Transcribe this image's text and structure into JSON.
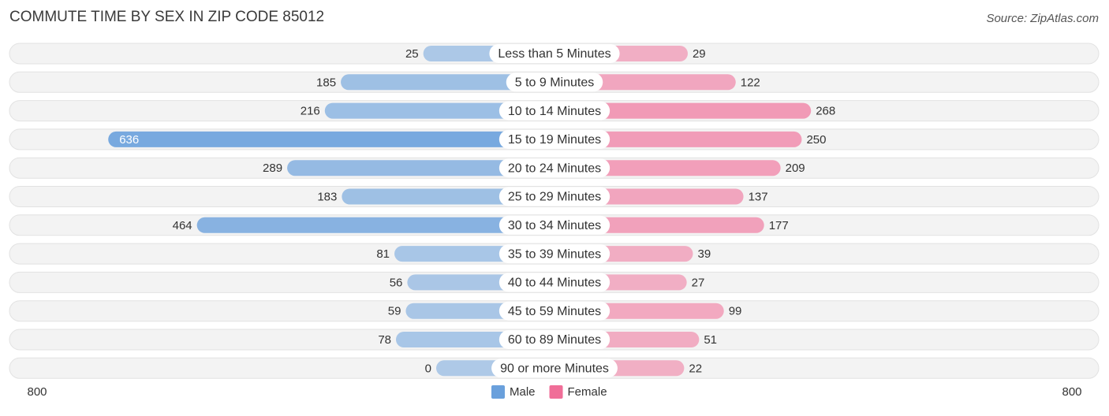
{
  "chart_data": {
    "type": "diverging_bar",
    "title": "COMMUTE TIME BY SEX IN ZIP CODE 85012",
    "source": "Source: ZipAtlas.com",
    "categories": [
      "Less than 5 Minutes",
      "5 to 9 Minutes",
      "10 to 14 Minutes",
      "15 to 19 Minutes",
      "20 to 24 Minutes",
      "25 to 29 Minutes",
      "30 to 34 Minutes",
      "35 to 39 Minutes",
      "40 to 44 Minutes",
      "45 to 59 Minutes",
      "60 to 89 Minutes",
      "90 or more Minutes"
    ],
    "series": [
      {
        "name": "Male",
        "color": "#6aa0dc",
        "values": [
          25,
          185,
          216,
          636,
          289,
          183,
          464,
          81,
          56,
          59,
          78,
          0
        ]
      },
      {
        "name": "Female",
        "color": "#f06e98",
        "values": [
          29,
          122,
          268,
          250,
          209,
          137,
          177,
          39,
          27,
          99,
          51,
          22
        ]
      }
    ],
    "xlim": [
      0,
      800
    ],
    "xticks": [
      800
    ]
  }
}
